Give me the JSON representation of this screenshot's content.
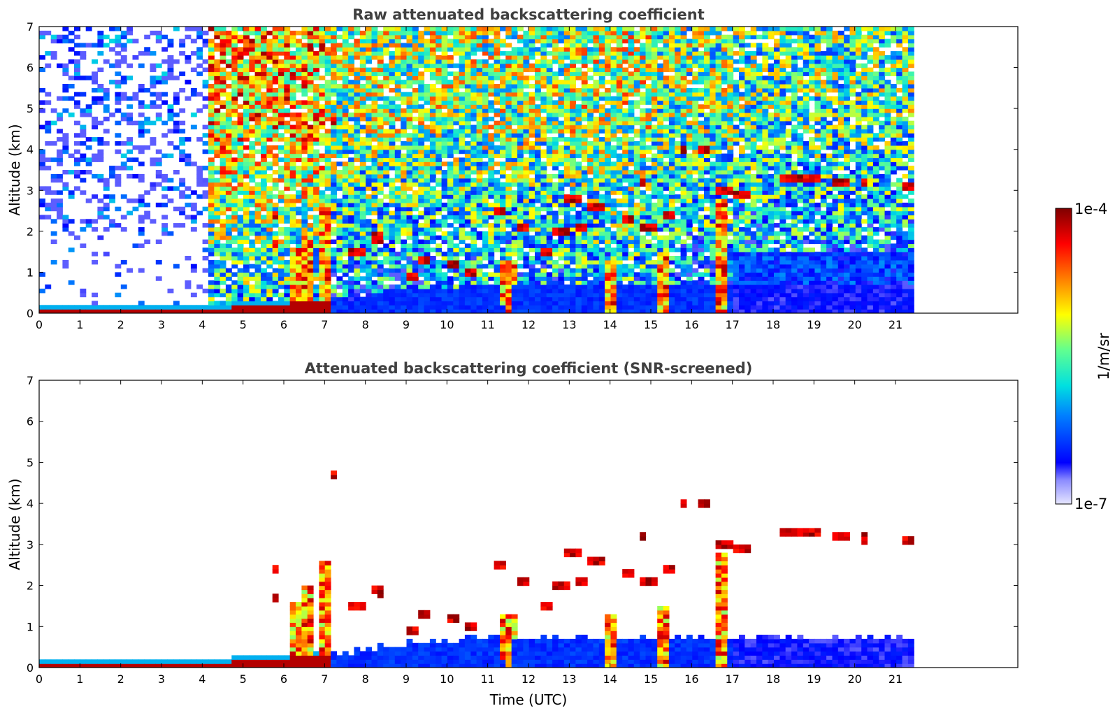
{
  "chart_data": [
    {
      "type": "heatmap",
      "title": "Raw attenuated backscattering coefficient",
      "xlabel": "",
      "ylabel": "Altitude (km)",
      "xlim": [
        0,
        24
      ],
      "ylim": [
        0,
        7
      ],
      "x_ticks": [
        "0",
        "1",
        "2",
        "3",
        "4",
        "5",
        "6",
        "7",
        "8",
        "9",
        "10",
        "11",
        "12",
        "13",
        "14",
        "15",
        "16",
        "17",
        "18",
        "19",
        "20",
        "21"
      ],
      "y_ticks": [
        "0",
        "1",
        "2",
        "3",
        "4",
        "5",
        "6",
        "7"
      ],
      "data_end_time": 21.45,
      "screened": false
    },
    {
      "type": "heatmap",
      "title": "Attenuated backscattering coefficient (SNR-screened)",
      "xlabel": "Time (UTC)",
      "ylabel": "Altitude (km)",
      "xlim": [
        0,
        24
      ],
      "ylim": [
        0,
        7
      ],
      "x_ticks": [
        "0",
        "1",
        "2",
        "3",
        "4",
        "5",
        "6",
        "7",
        "8",
        "9",
        "10",
        "11",
        "12",
        "13",
        "14",
        "15",
        "16",
        "17",
        "18",
        "19",
        "20",
        "21"
      ],
      "y_ticks": [
        "0",
        "1",
        "2",
        "3",
        "4",
        "5",
        "6",
        "7"
      ],
      "data_end_time": 21.45,
      "screened": true
    }
  ],
  "colorbar": {
    "label": "1/m/sr",
    "max_label": "1e-4",
    "min_label": "1e-7",
    "scale": "log",
    "colormap": "jet"
  },
  "features": {
    "surface_layer": [
      [
        0,
        0.1
      ],
      [
        4,
        0.12
      ],
      [
        5.5,
        0.18
      ],
      [
        6.2,
        0.25
      ],
      [
        7.1,
        0.3
      ]
    ],
    "plumes": [
      [
        6.3,
        1.6,
        0.9
      ],
      [
        6.6,
        2.0,
        1.0
      ],
      [
        7.0,
        2.6,
        0.8
      ],
      [
        11.5,
        1.3,
        0.85
      ],
      [
        14.0,
        1.3,
        0.6
      ],
      [
        15.3,
        1.5,
        0.6
      ],
      [
        16.7,
        2.8,
        0.9
      ]
    ],
    "cloud_patches": [
      [
        5.8,
        2.4,
        0.1
      ],
      [
        5.8,
        1.7,
        0.15
      ],
      [
        7.25,
        4.7,
        0.1
      ],
      [
        7.8,
        1.5,
        0.4
      ],
      [
        8.25,
        1.85,
        0.3
      ],
      [
        9.4,
        1.3,
        0.3
      ],
      [
        9.2,
        0.9,
        0.3
      ],
      [
        10.2,
        1.2,
        0.3
      ],
      [
        10.6,
        1.0,
        0.3
      ],
      [
        11.3,
        2.5,
        0.2
      ],
      [
        11.9,
        2.1,
        0.3
      ],
      [
        12.4,
        1.5,
        0.3
      ],
      [
        12.8,
        2.0,
        0.3
      ],
      [
        13.1,
        2.8,
        0.4
      ],
      [
        13.6,
        2.6,
        0.4
      ],
      [
        13.3,
        2.1,
        0.3
      ],
      [
        14.4,
        2.3,
        0.3
      ],
      [
        14.8,
        3.2,
        0.1
      ],
      [
        15.0,
        2.1,
        0.4
      ],
      [
        15.4,
        2.4,
        0.3
      ],
      [
        15.8,
        4.0,
        0.1
      ],
      [
        16.3,
        4.0,
        0.2
      ],
      [
        16.8,
        3.0,
        0.5
      ],
      [
        17.2,
        2.9,
        0.5
      ],
      [
        18.6,
        3.3,
        1.0
      ],
      [
        19.7,
        3.2,
        0.4
      ],
      [
        20.25,
        3.15,
        0.1
      ],
      [
        21.3,
        3.1,
        0.2
      ]
    ]
  }
}
